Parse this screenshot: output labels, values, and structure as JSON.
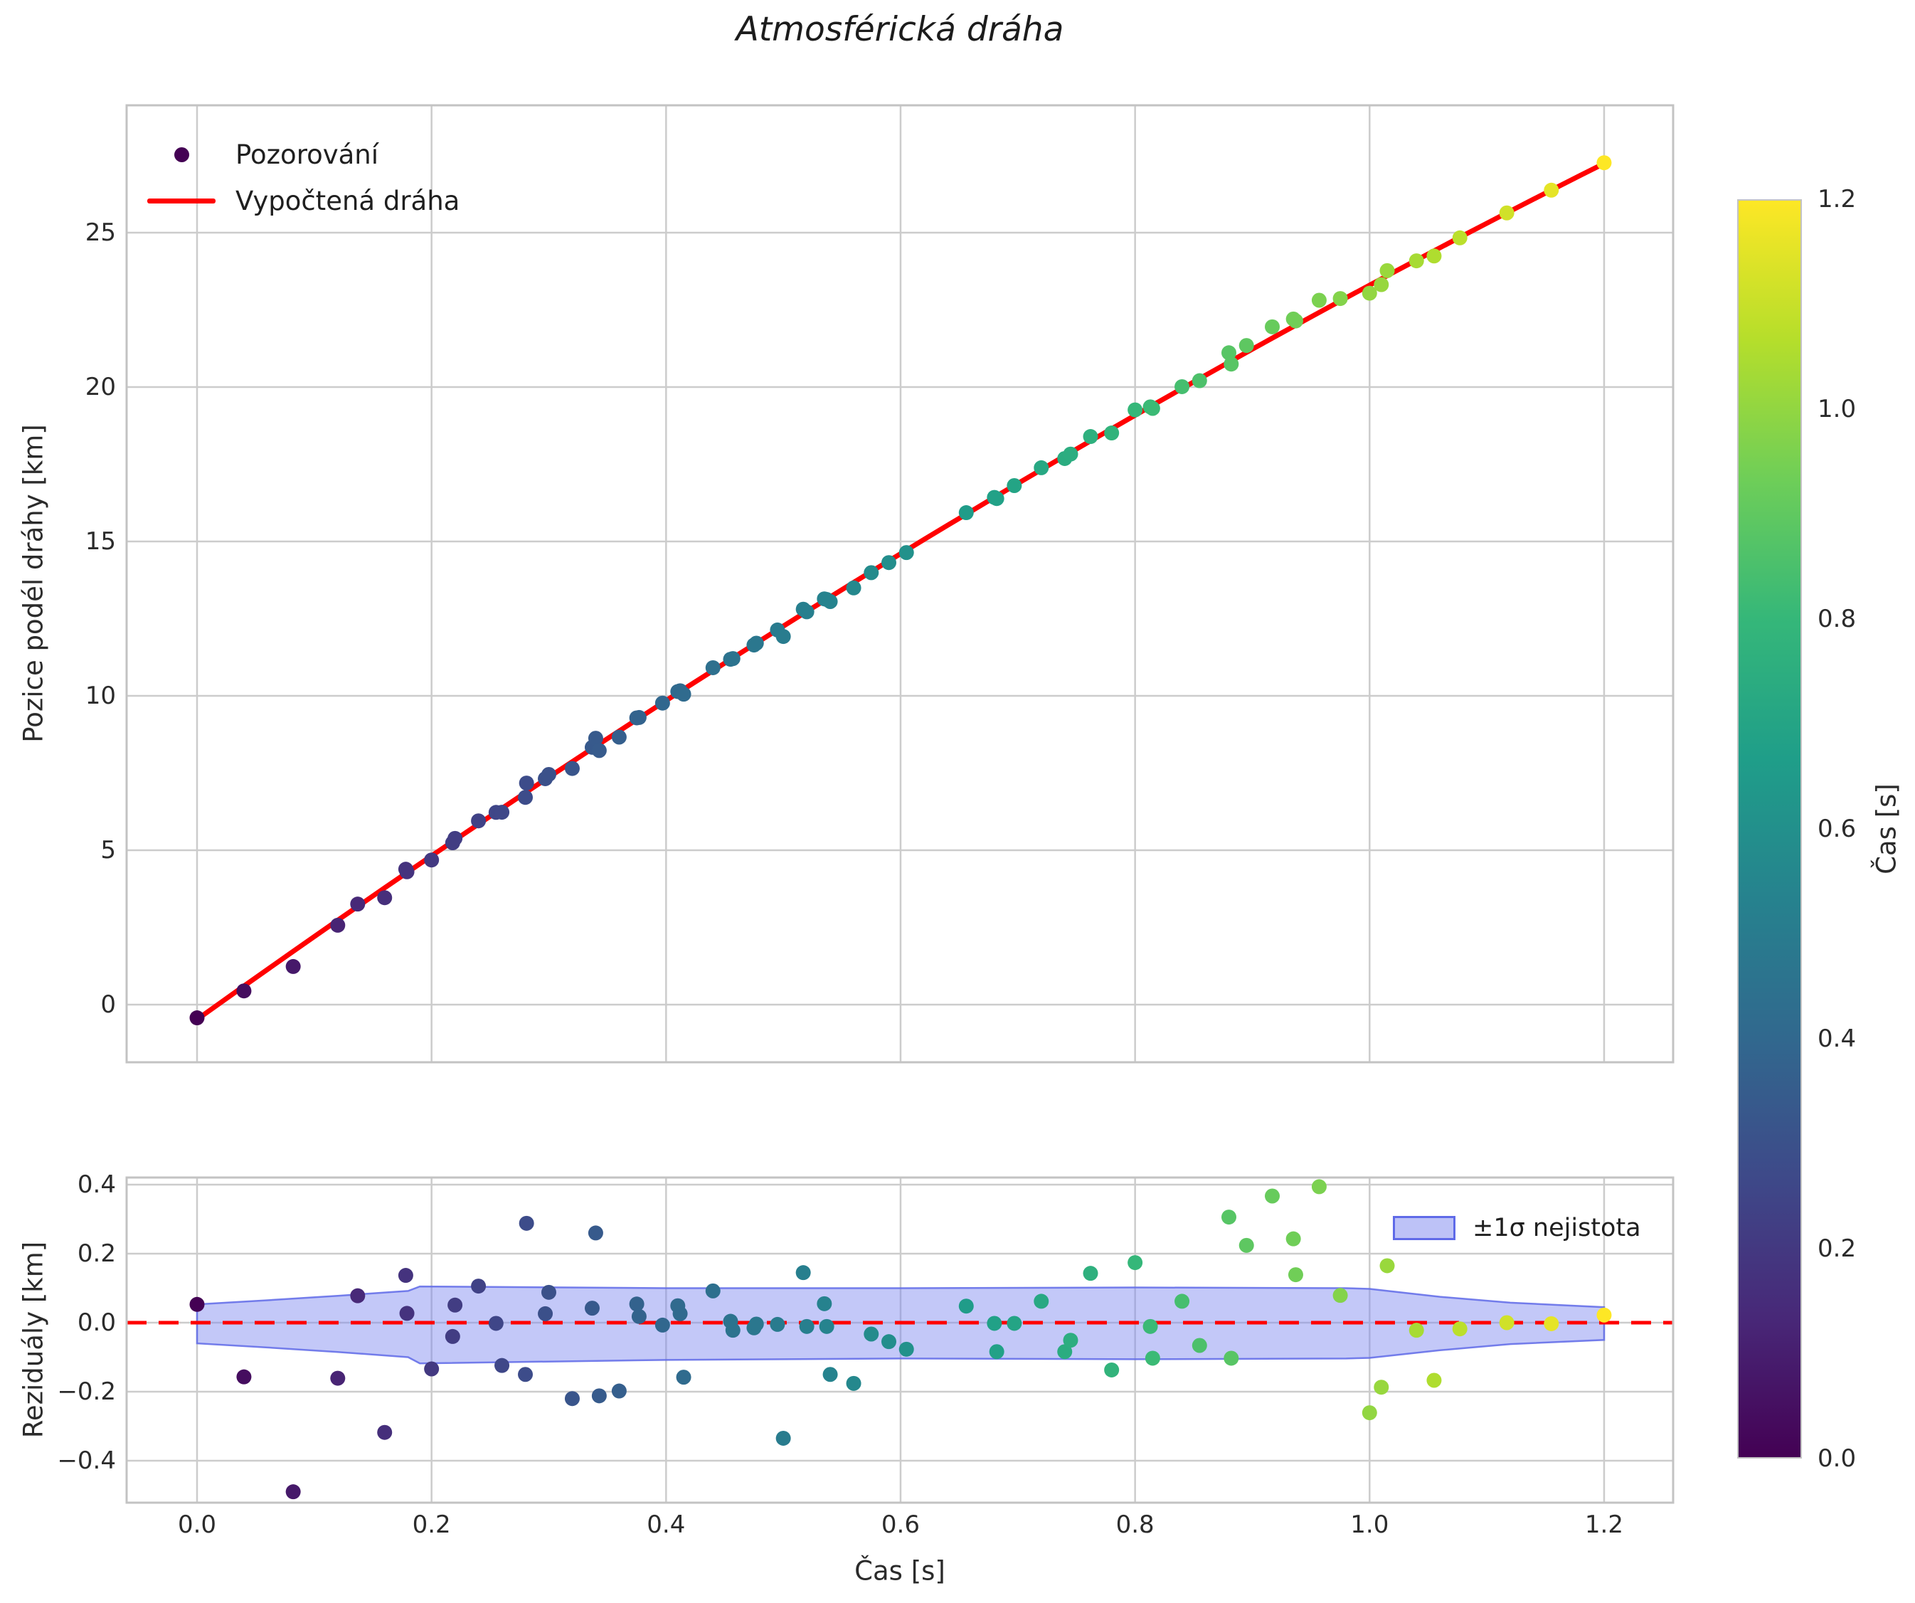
{
  "figure": {
    "title": "Atmosférická dráha",
    "background": "#ffffff"
  },
  "colors": {
    "fit_line_red": "#ff0000",
    "zero_line_red": "#ff0000",
    "grid": "#cccccc",
    "spine": "#c3c3c3",
    "text": "#2b2b2b",
    "band_fill": "#7b86f0",
    "band_fill_opacity": 0.45,
    "band_edge": "#5f6ae8",
    "viridis_anchors": [
      "#440154",
      "#482878",
      "#3e4989",
      "#31688e",
      "#26828e",
      "#1f9e89",
      "#35b779",
      "#6ece58",
      "#b5de2b",
      "#fde725"
    ]
  },
  "chart_data": [
    {
      "type": "scatter",
      "name": "trajectory-panel",
      "ylabel": "Pozice podél dráhy [km]",
      "legend": {
        "observations_label": "Pozorování",
        "fit_label": "Vypočtená dráha"
      },
      "x_gridlines": [
        0.0,
        0.2,
        0.4,
        0.6,
        0.8,
        1.0,
        1.2
      ],
      "y_ticks": [
        0,
        5,
        10,
        15,
        20,
        25
      ],
      "y_tick_labels": [
        "0",
        "5",
        "10",
        "15",
        "20",
        "25"
      ],
      "xlim": [
        -0.06,
        1.259
      ],
      "ylim": [
        -1.87,
        29.1
      ],
      "color_scale": "viridis, color = t / 1.2",
      "fit_line": {
        "model": "y = c0 + c1*t + c2*t^2",
        "c0": -0.48,
        "c1": 27.17,
        "c2": -3.39,
        "t_start": 0.0,
        "t_end": 1.2
      },
      "points_t": [
        0.0,
        0.04,
        0.082,
        0.12,
        0.137,
        0.16,
        0.178,
        0.179,
        0.2,
        0.218,
        0.22,
        0.24,
        0.255,
        0.26,
        0.28,
        0.281,
        0.297,
        0.3,
        0.32,
        0.337,
        0.34,
        0.343,
        0.36,
        0.375,
        0.377,
        0.397,
        0.41,
        0.412,
        0.415,
        0.44,
        0.455,
        0.457,
        0.475,
        0.477,
        0.495,
        0.5,
        0.517,
        0.52,
        0.535,
        0.537,
        0.54,
        0.56,
        0.575,
        0.59,
        0.605,
        0.656,
        0.68,
        0.682,
        0.697,
        0.72,
        0.74,
        0.745,
        0.762,
        0.78,
        0.8,
        0.813,
        0.815,
        0.84,
        0.855,
        0.88,
        0.882,
        0.895,
        0.917,
        0.935,
        0.937,
        0.957,
        0.975,
        1.0,
        1.01,
        1.015,
        1.04,
        1.055,
        1.077,
        1.117,
        1.155,
        1.2
      ],
      "points_residual": [
        0.053,
        -0.157,
        -0.49,
        -0.161,
        0.078,
        -0.318,
        0.137,
        0.027,
        -0.134,
        -0.04,
        0.051,
        0.106,
        -0.002,
        -0.124,
        -0.15,
        0.288,
        0.026,
        0.088,
        -0.22,
        0.042,
        0.26,
        -0.212,
        -0.198,
        0.054,
        0.018,
        -0.007,
        0.049,
        0.026,
        -0.158,
        0.092,
        0.004,
        -0.022,
        -0.015,
        -0.004,
        -0.005,
        -0.335,
        0.145,
        -0.011,
        0.055,
        -0.011,
        -0.15,
        -0.176,
        -0.033,
        -0.055,
        -0.077,
        0.048,
        -0.002,
        -0.084,
        -0.002,
        0.062,
        -0.084,
        -0.051,
        0.143,
        -0.137,
        0.174,
        -0.011,
        -0.103,
        0.062,
        -0.066,
        0.306,
        -0.103,
        0.224,
        0.367,
        0.243,
        0.139,
        0.394,
        0.079,
        -0.261,
        -0.187,
        0.165,
        -0.022,
        -0.167,
        -0.018,
        0.0,
        -0.003,
        0.022
      ],
      "note": "observed position y_i = fit_line(t_i) + points_residual_i"
    },
    {
      "type": "scatter",
      "name": "residuals-panel",
      "ylabel": "Reziduály [km]",
      "xlabel": "Čas [s]",
      "x_ticks": [
        0.0,
        0.2,
        0.4,
        0.6,
        0.8,
        1.0,
        1.2
      ],
      "x_tick_labels": [
        "0.0",
        "0.2",
        "0.4",
        "0.6",
        "0.8",
        "1.0",
        "1.2"
      ],
      "y_ticks": [
        0.4,
        0.2,
        0.0,
        -0.2,
        -0.4
      ],
      "y_tick_labels": [
        "0.4",
        "0.2",
        "0.0",
        "−0.2",
        "−0.4"
      ],
      "xlim": [
        -0.06,
        1.259
      ],
      "ylim": [
        -0.525,
        0.421
      ],
      "zero_line": {
        "y": 0.0,
        "style": "dashed",
        "color": "#ff0000"
      },
      "band": {
        "legend_label": "±1σ nejistota",
        "t": [
          0.0,
          0.06,
          0.12,
          0.18,
          0.19,
          0.4,
          0.6,
          0.8,
          0.98,
          1.0,
          1.06,
          1.12,
          1.2
        ],
        "upper": [
          0.053,
          0.065,
          0.078,
          0.092,
          0.105,
          0.1,
          0.1,
          0.102,
          0.1,
          0.098,
          0.075,
          0.058,
          0.045
        ],
        "lower": [
          -0.06,
          -0.072,
          -0.085,
          -0.1,
          -0.118,
          -0.108,
          -0.104,
          -0.106,
          -0.104,
          -0.102,
          -0.08,
          -0.062,
          -0.05
        ]
      }
    },
    {
      "type": "colorbar",
      "name": "time-colorbar",
      "label": "Čas [s]",
      "range": [
        0.0,
        1.2
      ],
      "ticks": [
        0.0,
        0.2,
        0.4,
        0.6,
        0.8,
        1.0,
        1.2
      ],
      "tick_labels": [
        "0.0",
        "0.2",
        "0.4",
        "0.6",
        "0.8",
        "1.0",
        "1.2"
      ],
      "colormap": "viridis"
    }
  ]
}
